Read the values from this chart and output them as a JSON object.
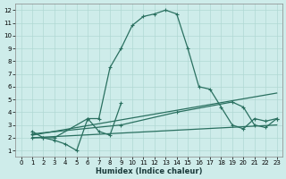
{
  "xlabel": "Humidex (Indice chaleur)",
  "background_color": "#ceecea",
  "grid_color": "#b0d8d4",
  "line_color": "#2a7060",
  "xlim": [
    -0.5,
    23.5
  ],
  "ylim": [
    0.5,
    12.5
  ],
  "xticks": [
    0,
    1,
    2,
    3,
    4,
    5,
    6,
    7,
    8,
    9,
    10,
    11,
    12,
    13,
    14,
    15,
    16,
    17,
    18,
    19,
    20,
    21,
    22,
    23
  ],
  "yticks": [
    1,
    2,
    3,
    4,
    5,
    6,
    7,
    8,
    9,
    10,
    11,
    12
  ],
  "line_main": {
    "x": [
      1,
      2,
      3,
      6,
      7,
      8,
      9,
      10,
      11,
      12,
      13,
      14,
      15,
      16,
      17,
      18,
      19,
      20,
      21,
      22,
      23
    ],
    "y": [
      2.5,
      2,
      2,
      3.5,
      3.5,
      7.5,
      9,
      10.8,
      11.5,
      11.7,
      12,
      11.7,
      9,
      6,
      5.8,
      4.4,
      3,
      2.7,
      3.5,
      3.3,
      3.5
    ]
  },
  "line_zigzag": {
    "x": [
      1,
      2,
      3,
      4,
      5,
      6,
      7,
      8,
      9
    ],
    "y": [
      2,
      2,
      1.8,
      1.5,
      1,
      3.5,
      2.5,
      2.2,
      4.7
    ]
  },
  "line_upper": {
    "x": [
      1,
      9,
      14,
      19,
      20,
      21,
      22,
      23
    ],
    "y": [
      2.3,
      3.0,
      4.0,
      4.8,
      4.4,
      3.0,
      2.8,
      3.5
    ]
  },
  "line_lower": {
    "x": [
      1,
      23
    ],
    "y": [
      2.0,
      3.0
    ]
  },
  "line_mid": {
    "x": [
      1,
      23
    ],
    "y": [
      2.2,
      5.5
    ]
  }
}
